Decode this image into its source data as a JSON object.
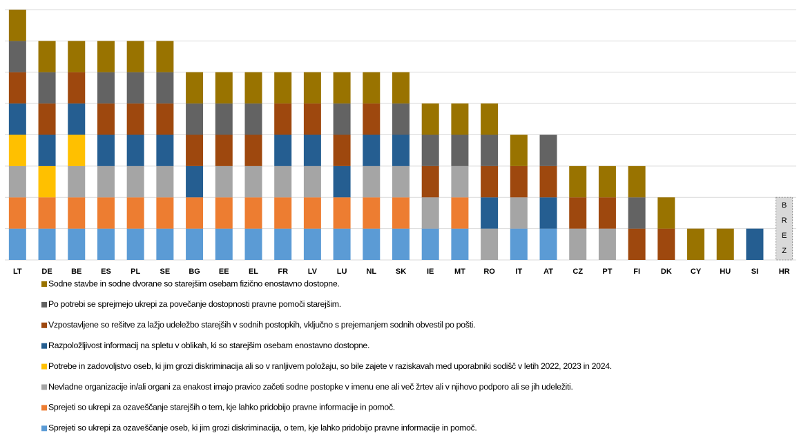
{
  "chart_data": {
    "type": "stacked-bar",
    "categories": [
      "LT",
      "DE",
      "BE",
      "ES",
      "PL",
      "SE",
      "BG",
      "EE",
      "EL",
      "FR",
      "LV",
      "LU",
      "NL",
      "SK",
      "IE",
      "MT",
      "RO",
      "IT",
      "AT",
      "CZ",
      "PT",
      "FI",
      "DK",
      "CY",
      "HU",
      "SI",
      "HR"
    ],
    "ylim": [
      0,
      8
    ],
    "yticks": [
      0,
      1,
      2,
      3,
      4,
      5,
      6,
      7,
      8
    ],
    "grid": true,
    "legend": "bottom",
    "annotation": [
      "B",
      "R",
      "E",
      "Z"
    ],
    "series": [
      {
        "name": "Sodne stavbe in sodne dvorane so starejšim osebam fizično enostavno dostopne.",
        "color": "#997300",
        "values": [
          1,
          1,
          1,
          1,
          1,
          1,
          1,
          1,
          1,
          1,
          1,
          1,
          1,
          1,
          1,
          1,
          1,
          1,
          0,
          1,
          1,
          1,
          1,
          1,
          1,
          0,
          0
        ]
      },
      {
        "name": "Po potrebi se sprejmejo ukrepi za povečanje dostopnosti pravne pomoči starejšim.",
        "color": "#636363",
        "values": [
          1,
          1,
          0,
          1,
          1,
          1,
          1,
          1,
          1,
          0,
          0,
          1,
          0,
          1,
          1,
          1,
          1,
          0,
          1,
          0,
          0,
          1,
          0,
          0,
          0,
          0,
          0
        ]
      },
      {
        "name": "Vzpostavljene so rešitve za lažjo udeležbo starejših v sodnih postopkih, vključno s prejemanjem sodnih obvestil po pošti.",
        "color": "#9e480e",
        "values": [
          1,
          1,
          1,
          1,
          1,
          1,
          1,
          1,
          1,
          1,
          1,
          1,
          1,
          0,
          1,
          0,
          1,
          1,
          1,
          1,
          1,
          1,
          1,
          0,
          0,
          0,
          0
        ]
      },
      {
        "name": "Razpoložljivost informacij na spletu v oblikah, ki so starejšim osebam enostavno dostopne.",
        "color": "#255e91",
        "values": [
          1,
          1,
          1,
          1,
          1,
          1,
          1,
          0,
          0,
          1,
          1,
          1,
          1,
          1,
          0,
          0,
          1,
          0,
          1,
          0,
          0,
          0,
          0,
          0,
          0,
          1,
          0
        ]
      },
      {
        "name": "Potrebe in zadovoljstvo oseb, ki jim grozi diskriminacija ali so v ranljivem položaju, so bile zajete v raziskavah med uporabniki sodišč v letih 2022, 2023 in 2024.",
        "color": "#ffc000",
        "values": [
          1,
          1,
          1,
          0,
          0,
          0,
          0,
          0,
          0,
          0,
          0,
          0,
          0,
          0,
          0,
          0,
          0,
          0,
          0,
          0,
          0,
          0,
          0,
          0,
          0,
          0,
          0
        ]
      },
      {
        "name": "Nevladne organizacije in/ali organi za enakost imajo pravico začeti sodne postopke v imenu ene ali več žrtev ali v njihovo podporo ali se jih udeležiti.",
        "color": "#a5a5a5",
        "values": [
          1,
          0,
          1,
          1,
          1,
          1,
          0,
          1,
          1,
          1,
          1,
          0,
          1,
          1,
          1,
          1,
          1,
          1,
          0,
          1,
          1,
          0,
          0,
          0,
          0,
          0,
          0
        ]
      },
      {
        "name": "Sprejeti so ukrepi za ozaveščanje starejših o tem, kje lahko pridobijo pravne informacije in pomoč.",
        "color": "#ed7d31",
        "values": [
          1,
          1,
          1,
          1,
          1,
          1,
          1,
          1,
          1,
          1,
          1,
          1,
          1,
          1,
          0,
          1,
          0,
          0,
          0,
          0,
          0,
          0,
          0,
          0,
          0,
          0,
          0
        ]
      },
      {
        "name": "Sprejeti so ukrepi za ozaveščanje oseb, ki jim grozi diskriminacija, o tem, kje lahko pridobijo pravne informacije in pomoč.",
        "color": "#5b9bd5",
        "values": [
          1,
          1,
          1,
          1,
          1,
          1,
          1,
          1,
          1,
          1,
          1,
          1,
          1,
          1,
          1,
          1,
          0,
          1,
          1,
          0,
          0,
          0,
          0,
          0,
          0,
          0,
          0
        ]
      }
    ]
  }
}
